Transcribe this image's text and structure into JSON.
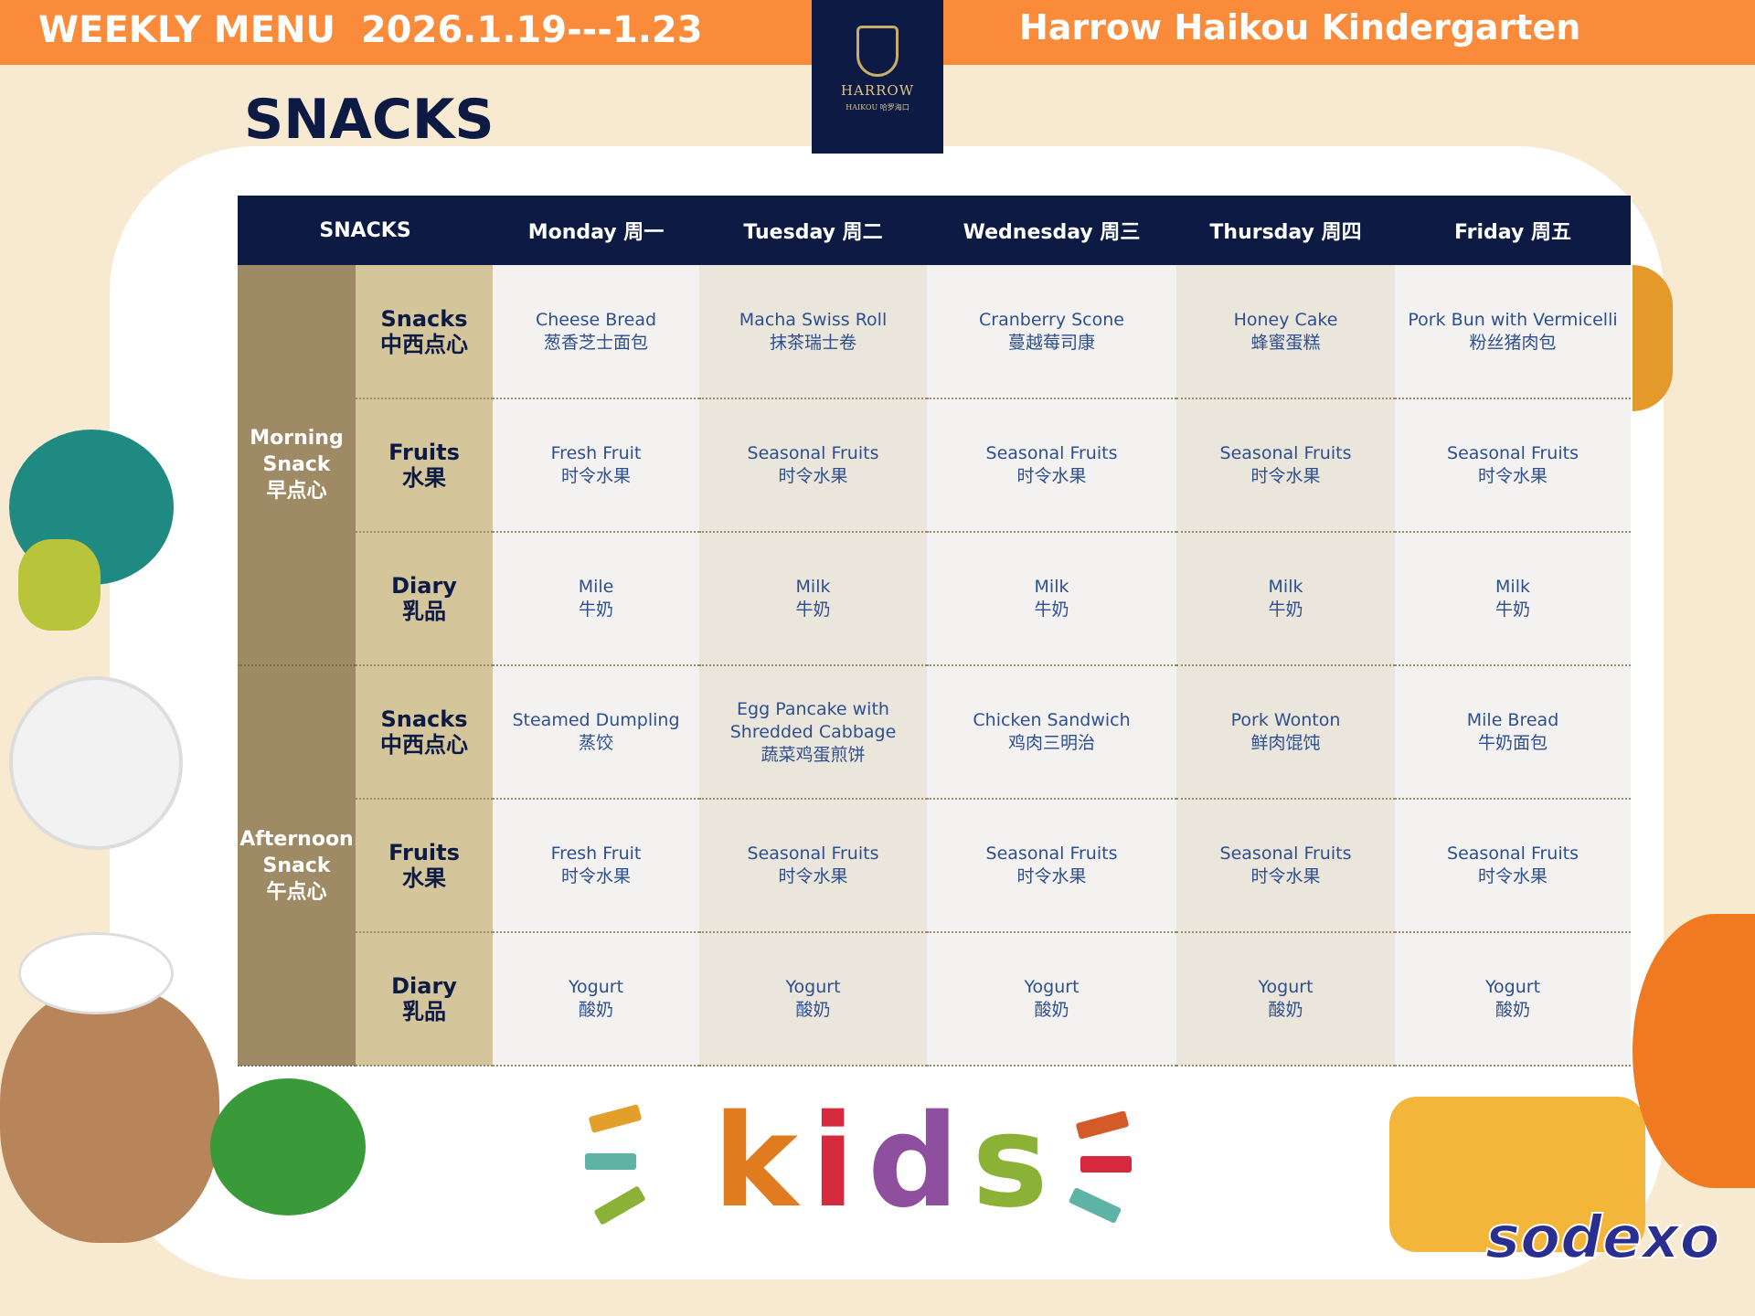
{
  "header": {
    "title": "WEEKLY MENU  2026.1.19---1.23",
    "school": "Harrow Haikou Kindergarten",
    "logo_text": "HARROW",
    "logo_sub": "HAIKOU 哈罗海口"
  },
  "page_title": "SNACKS",
  "table": {
    "columns": [
      "SNACKS",
      "Monday 周一",
      "Tuesday 周二",
      "Wednesday 周三",
      "Thursday 周四",
      "Friday 周五"
    ],
    "groups": [
      {
        "label": "Morning Snack 早点心",
        "rows": [
          {
            "category": "Snacks 中西点心",
            "cells": [
              "Cheese Bread 葱香芝士面包",
              "Macha Swiss Roll 抹茶瑞士卷",
              "Cranberry Scone 蔓越莓司康",
              "Honey Cake 蜂蜜蛋糕",
              "Pork Bun with Vermicelli 粉丝猪肉包"
            ]
          },
          {
            "category": "Fruits 水果",
            "cells": [
              "Fresh Fruit 时令水果",
              "Seasonal Fruits 时令水果",
              "Seasonal Fruits 时令水果",
              "Seasonal Fruits 时令水果",
              "Seasonal Fruits 时令水果"
            ]
          },
          {
            "category": "Diary 乳品",
            "cells": [
              "Mile 牛奶",
              "Milk 牛奶",
              "Milk 牛奶",
              "Milk 牛奶",
              "Milk 牛奶"
            ]
          }
        ]
      },
      {
        "label": "Afternoon Snack 午点心",
        "rows": [
          {
            "category": "Snacks 中西点心",
            "cells": [
              "Steamed Dumpling 蒸饺",
              "Egg Pancake with Shredded Cabbage 蔬菜鸡蛋煎饼",
              "Chicken Sandwich 鸡肉三明治",
              "Pork Wonton 鲜肉馄饨",
              "Mile Bread 牛奶面包"
            ]
          },
          {
            "category": "Fruits 水果",
            "cells": [
              "Fresh Fruit 时令水果",
              "Seasonal Fruits 时令水果",
              "Seasonal Fruits 时令水果",
              "Seasonal Fruits 时令水果",
              "Seasonal Fruits 时令水果"
            ]
          },
          {
            "category": "Diary 乳品",
            "cells": [
              "Yogurt 酸奶",
              "Yogurt 酸奶",
              "Yogurt 酸奶",
              "Yogurt 酸奶",
              "Yogurt 酸奶"
            ]
          }
        ]
      }
    ]
  },
  "footer": {
    "kids_letters": [
      "k",
      "i",
      "d",
      "s"
    ],
    "kids_colors": [
      "#e07b1f",
      "#d6293e",
      "#8e4f9e",
      "#8bb236"
    ],
    "brand": "sodexo"
  },
  "colors": {
    "orange": "#f98b3a",
    "navy": "#0c1a44",
    "item_text": "#2e4f8f"
  }
}
